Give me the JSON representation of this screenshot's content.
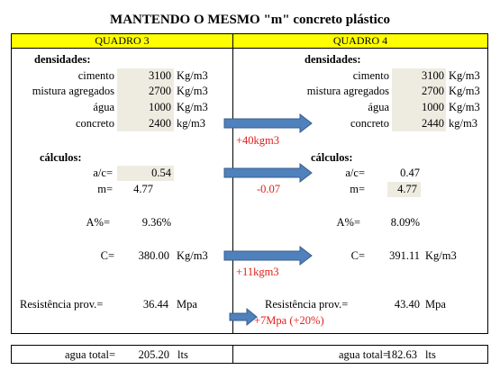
{
  "title": "MANTENDO O MESMO \"m\" concreto plástico",
  "left": {
    "header": "QUADRO 3",
    "densidades": {
      "label": "densidades:",
      "rows": [
        {
          "label": "cimento",
          "value": "3100",
          "unit": "Kg/m3"
        },
        {
          "label": "mistura agregados",
          "value": "2700",
          "unit": "Kg/m3"
        },
        {
          "label": "água",
          "value": "1000",
          "unit": "Kg/m3"
        },
        {
          "label": "concreto",
          "value": "2400",
          "unit": "kg/m3"
        }
      ]
    },
    "calculos": {
      "label": "cálculos:",
      "ac": {
        "label": "a/c=",
        "value": "0.54"
      },
      "m": {
        "label": "m=",
        "value": "4.77"
      },
      "a": {
        "label": "A%=",
        "value": "9.36%"
      },
      "c": {
        "label": "C=",
        "value": "380.00",
        "unit": "Kg/m3"
      },
      "resistencia": {
        "label": "Resistência prov.=",
        "value": "36.44",
        "unit": "Mpa"
      }
    },
    "agua": {
      "label": "agua total=",
      "value": "205.20",
      "unit": "lts"
    }
  },
  "right": {
    "header": "QUADRO 4",
    "densidades": {
      "label": "densidades:",
      "rows": [
        {
          "label": "cimento",
          "value": "3100",
          "unit": "Kg/m3"
        },
        {
          "label": "mistura agregados",
          "value": "2700",
          "unit": "Kg/m3"
        },
        {
          "label": "água",
          "value": "1000",
          "unit": "Kg/m3"
        },
        {
          "label": "concreto",
          "value": "2440",
          "unit": "kg/m3"
        }
      ]
    },
    "calculos": {
      "label": "cálculos:",
      "ac": {
        "label": "a/c=",
        "value": "0.47"
      },
      "m": {
        "label": "m=",
        "value": "4.77"
      },
      "a": {
        "label": "A%=",
        "value": "8.09%"
      },
      "c": {
        "label": "C=",
        "value": "391.11",
        "unit": "Kg/m3"
      },
      "resistencia": {
        "label": "Resistência prov.=",
        "value": "43.40",
        "unit": "Mpa"
      }
    },
    "agua": {
      "label": "agua total=",
      "value": "182.63",
      "unit": "lts"
    }
  },
  "notes": {
    "concreto": "+40kgm3",
    "ac": "-0.07",
    "c": "+11kgm3",
    "resistencia": "+7Mpa (+20%)"
  }
}
